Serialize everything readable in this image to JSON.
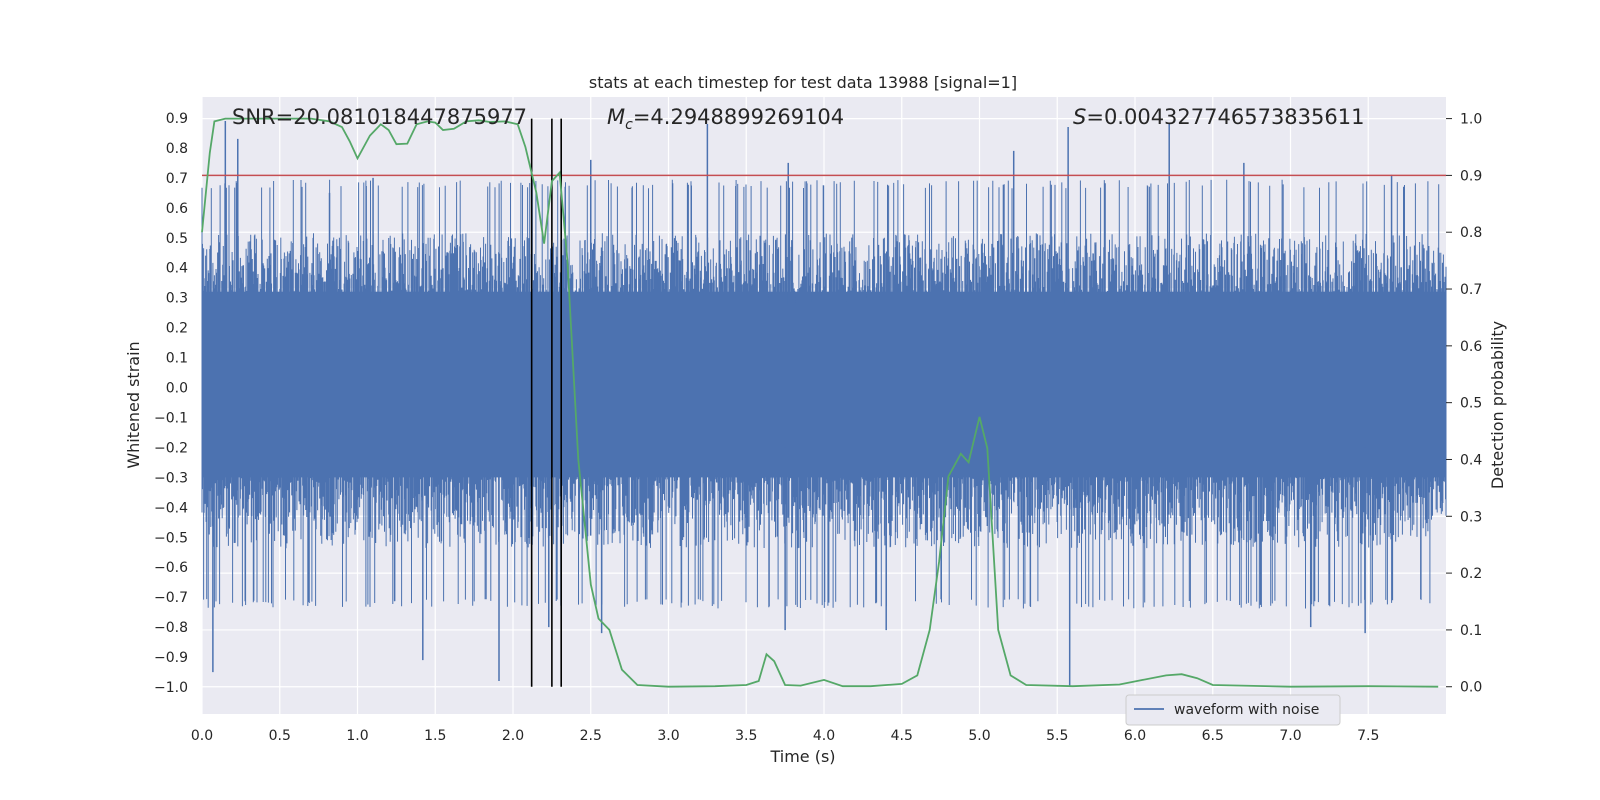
{
  "chart_data": {
    "type": "line",
    "title": "stats at each timestep for test data 13988 [signal=1]",
    "xlabel": "Time (s)",
    "ylabel": "Whitened strain",
    "y2label": "Detection probability",
    "xlim": [
      0.0,
      8.0
    ],
    "ylim": [
      -1.09,
      0.97
    ],
    "y2lim": [
      -0.048,
      1.038
    ],
    "grid": true,
    "background_color": "#eaeaf2",
    "xticks": [
      "0.0",
      "0.5",
      "1.0",
      "1.5",
      "2.0",
      "2.5",
      "3.0",
      "3.5",
      "4.0",
      "4.5",
      "5.0",
      "5.5",
      "6.0",
      "6.5",
      "7.0",
      "7.5"
    ],
    "yticks": [
      "0.9",
      "0.8",
      "0.7",
      "0.6",
      "0.5",
      "0.4",
      "0.3",
      "0.2",
      "0.1",
      "0.0",
      "−0.1",
      "−0.2",
      "−0.3",
      "−0.4",
      "−0.5",
      "−0.6",
      "−0.7",
      "−0.8",
      "−0.9",
      "−1.0"
    ],
    "y2ticks": [
      "1.0",
      "0.9",
      "0.8",
      "0.7",
      "0.6",
      "0.5",
      "0.4",
      "0.3",
      "0.2",
      "0.1",
      "0.0"
    ],
    "annotations": {
      "snr": "SNR=20.081018447875977",
      "mc_symbol": "M",
      "mc_sub": "c",
      "mc_value": "=4.2948899269104",
      "s_symbol": "S",
      "s_value": "=0.004327746573835611"
    },
    "legend": {
      "label": "waveform with noise",
      "placement": "lower-right"
    },
    "threshold": {
      "y2": 0.9,
      "color": "#c44e52"
    },
    "event_lines_x": [
      2.12,
      2.25,
      2.31
    ],
    "series": [
      {
        "name": "waveform with noise",
        "axis": "left",
        "color": "#4c72b0",
        "kind": "noise-envelope",
        "envelope": {
          "x": [
            0.0,
            8.0
          ],
          "typical_abs": 0.48,
          "max_spike": 0.9,
          "min_spike": -1.0
        },
        "peaks_high": [
          {
            "x": 0.15,
            "y": 0.89
          },
          {
            "x": 0.23,
            "y": 0.83
          },
          {
            "x": 0.82,
            "y": 0.65
          },
          {
            "x": 1.1,
            "y": 0.7
          },
          {
            "x": 2.5,
            "y": 0.76
          },
          {
            "x": 3.25,
            "y": 0.88
          },
          {
            "x": 3.77,
            "y": 0.75
          },
          {
            "x": 5.22,
            "y": 0.79
          },
          {
            "x": 5.57,
            "y": 0.87
          },
          {
            "x": 6.22,
            "y": 0.88
          },
          {
            "x": 6.7,
            "y": 0.75
          },
          {
            "x": 7.65,
            "y": 0.71
          }
        ],
        "peaks_low": [
          {
            "x": 0.07,
            "y": -0.95
          },
          {
            "x": 1.42,
            "y": -0.91
          },
          {
            "x": 1.91,
            "y": -0.98
          },
          {
            "x": 2.23,
            "y": -0.8
          },
          {
            "x": 2.57,
            "y": -0.82
          },
          {
            "x": 3.75,
            "y": -0.81
          },
          {
            "x": 4.4,
            "y": -0.81
          },
          {
            "x": 5.58,
            "y": -1.0
          },
          {
            "x": 7.48,
            "y": -0.82
          },
          {
            "x": 7.13,
            "y": -0.8
          }
        ]
      },
      {
        "name": "",
        "axis": "right",
        "color": "#55a868",
        "x": [
          0.0,
          0.05,
          0.08,
          0.15,
          0.3,
          0.5,
          0.7,
          0.82,
          0.9,
          0.95,
          1.0,
          1.08,
          1.15,
          1.2,
          1.25,
          1.32,
          1.38,
          1.45,
          1.5,
          1.55,
          1.62,
          1.7,
          1.78,
          1.85,
          1.95,
          2.03,
          2.08,
          2.15,
          2.2,
          2.25,
          2.3,
          2.35,
          2.42,
          2.5,
          2.55,
          2.62,
          2.7,
          2.8,
          3.0,
          3.3,
          3.5,
          3.58,
          3.63,
          3.68,
          3.75,
          3.85,
          4.0,
          4.12,
          4.3,
          4.5,
          4.6,
          4.68,
          4.74,
          4.8,
          4.88,
          4.93,
          5.0,
          5.05,
          5.12,
          5.2,
          5.3,
          5.6,
          5.9,
          6.05,
          6.2,
          6.3,
          6.4,
          6.5,
          7.0,
          7.5,
          7.95
        ],
        "values": [
          0.8,
          0.94,
          0.995,
          1.0,
          1.0,
          1.0,
          1.0,
          0.995,
          0.985,
          0.96,
          0.93,
          0.97,
          0.99,
          0.98,
          0.955,
          0.956,
          0.99,
          0.995,
          0.993,
          0.98,
          0.982,
          0.995,
          0.997,
          0.994,
          0.995,
          0.99,
          0.95,
          0.87,
          0.78,
          0.89,
          0.905,
          0.75,
          0.4,
          0.18,
          0.12,
          0.1,
          0.03,
          0.003,
          0.0,
          0.001,
          0.003,
          0.01,
          0.057,
          0.045,
          0.003,
          0.002,
          0.012,
          0.001,
          0.001,
          0.005,
          0.02,
          0.1,
          0.22,
          0.37,
          0.41,
          0.395,
          0.475,
          0.42,
          0.1,
          0.02,
          0.003,
          0.001,
          0.004,
          0.012,
          0.02,
          0.022,
          0.015,
          0.003,
          0.0,
          0.001,
          0.0
        ]
      }
    ]
  }
}
